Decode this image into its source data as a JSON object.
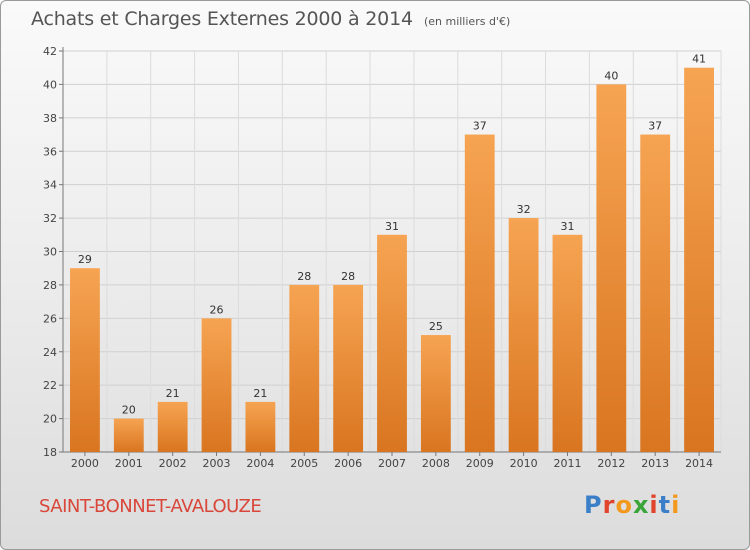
{
  "title": "Achats et Charges Externes 2000 à 2014",
  "subtitle": "(en milliers d'€)",
  "commune": "SAINT-BONNET-AVALOUZE",
  "logo": {
    "text": "Proxiti",
    "letters": [
      {
        "ch": "P",
        "color": "#3a7fc8"
      },
      {
        "ch": "r",
        "color": "#e0442d"
      },
      {
        "ch": "o",
        "color": "#f29a1f"
      },
      {
        "ch": "x",
        "color": "#3aa63a"
      },
      {
        "ch": "i",
        "color": "#e0442d"
      },
      {
        "ch": "t",
        "color": "#3a7fc8"
      },
      {
        "ch": "i",
        "color": "#f29a1f"
      }
    ]
  },
  "chart_data": {
    "type": "bar",
    "categories": [
      "2000",
      "2001",
      "2002",
      "2003",
      "2004",
      "2005",
      "2006",
      "2007",
      "2008",
      "2009",
      "2010",
      "2011",
      "2012",
      "2013",
      "2014"
    ],
    "values": [
      29,
      20,
      21,
      26,
      21,
      28,
      28,
      31,
      25,
      37,
      32,
      31,
      40,
      37,
      41
    ],
    "ylim": [
      18,
      42
    ],
    "yticks": [
      18,
      20,
      22,
      24,
      26,
      28,
      30,
      32,
      34,
      36,
      38,
      40,
      42
    ],
    "grid": true,
    "bar_color": "#f0963a",
    "show_value_labels": true
  }
}
